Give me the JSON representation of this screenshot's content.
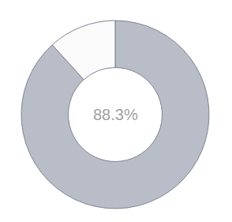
{
  "chart_data": {
    "type": "pie",
    "values": [
      88.3,
      11.7
    ],
    "colors": [
      "#b9bdc8",
      "#fafafa"
    ],
    "annotations": [
      "88.3%"
    ],
    "data_labels": false
  }
}
